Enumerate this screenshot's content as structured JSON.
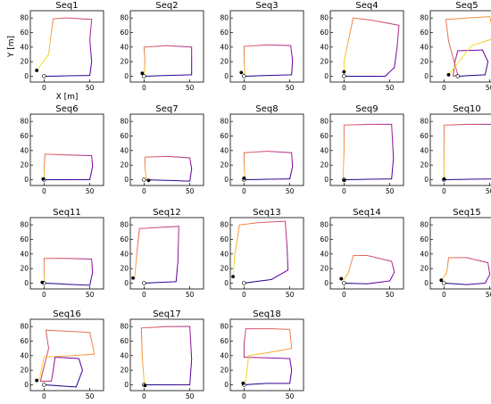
{
  "chart_data": [
    {
      "type": "line",
      "title": "Seq1",
      "xlabel": "X [m]",
      "ylabel": "Y [m]",
      "xlim": [
        -15,
        65
      ],
      "ylim": [
        -8,
        90
      ],
      "xticks": [
        0,
        50
      ],
      "yticks": [
        0,
        20,
        40,
        60,
        80
      ],
      "path": [
        [
          0,
          0
        ],
        [
          50,
          1
        ],
        [
          52,
          20
        ],
        [
          50,
          50
        ],
        [
          52,
          78
        ],
        [
          25,
          80
        ],
        [
          10,
          79
        ],
        [
          8,
          60
        ],
        [
          5,
          30
        ],
        [
          -8,
          8
        ]
      ],
      "start": [
        0,
        0
      ],
      "end": [
        -8,
        8
      ]
    },
    {
      "type": "line",
      "title": "Seq2",
      "xlabel": "",
      "ylabel": "",
      "xlim": [
        -15,
        65
      ],
      "ylim": [
        -8,
        90
      ],
      "xticks": [
        0,
        50
      ],
      "yticks": [
        0,
        20,
        40,
        60,
        80
      ],
      "path": [
        [
          0,
          0
        ],
        [
          52,
          2
        ],
        [
          52,
          20
        ],
        [
          52,
          40
        ],
        [
          25,
          42
        ],
        [
          0,
          40
        ],
        [
          1,
          20
        ],
        [
          0,
          3
        ],
        [
          -2,
          4
        ]
      ],
      "start": [
        0,
        0
      ],
      "end": [
        -2,
        4
      ]
    },
    {
      "type": "line",
      "title": "Seq3",
      "xlabel": "",
      "ylabel": "",
      "xlim": [
        -15,
        65
      ],
      "ylim": [
        -8,
        90
      ],
      "xticks": [
        0,
        50
      ],
      "yticks": [
        0,
        20,
        40,
        60,
        80
      ],
      "path": [
        [
          0,
          0
        ],
        [
          52,
          2
        ],
        [
          53,
          22
        ],
        [
          51,
          42
        ],
        [
          25,
          43
        ],
        [
          0,
          41
        ],
        [
          0,
          20
        ],
        [
          1,
          3
        ],
        [
          -3,
          5
        ]
      ],
      "start": [
        0,
        0
      ],
      "end": [
        -3,
        5
      ]
    },
    {
      "type": "line",
      "title": "Seq4",
      "xlabel": "",
      "ylabel": "",
      "xlim": [
        -15,
        65
      ],
      "ylim": [
        -8,
        90
      ],
      "xticks": [
        0,
        50
      ],
      "yticks": [
        0,
        20,
        40,
        60,
        80
      ],
      "path": [
        [
          0,
          0
        ],
        [
          45,
          0
        ],
        [
          55,
          12
        ],
        [
          58,
          40
        ],
        [
          60,
          70
        ],
        [
          30,
          77
        ],
        [
          10,
          80
        ],
        [
          5,
          50
        ],
        [
          0,
          20
        ],
        [
          0,
          6
        ]
      ],
      "start": [
        0,
        0
      ],
      "end": [
        0,
        6
      ]
    },
    {
      "type": "line",
      "title": "Seq5",
      "xlabel": "",
      "ylabel": "",
      "xlim": [
        -15,
        65
      ],
      "ylim": [
        -8,
        90
      ],
      "xticks": [
        0,
        50
      ],
      "yticks": [
        0,
        20,
        40,
        60,
        80
      ],
      "path": [
        [
          15,
          0
        ],
        [
          45,
          2
        ],
        [
          48,
          20
        ],
        [
          42,
          36
        ],
        [
          15,
          35
        ],
        [
          12,
          20
        ],
        [
          10,
          0
        ],
        [
          15,
          2
        ],
        [
          5,
          48
        ],
        [
          2,
          78
        ],
        [
          50,
          82
        ],
        [
          55,
          52
        ],
        [
          30,
          42
        ],
        [
          5,
          2
        ]
      ],
      "start": [
        15,
        0
      ],
      "end": [
        5,
        2
      ]
    },
    {
      "type": "line",
      "title": "Seq6",
      "xlabel": "",
      "ylabel": "",
      "xlim": [
        -15,
        65
      ],
      "ylim": [
        -8,
        90
      ],
      "xticks": [
        0,
        50
      ],
      "yticks": [
        0,
        20,
        40,
        60,
        80
      ],
      "path": [
        [
          0,
          0
        ],
        [
          50,
          0
        ],
        [
          53,
          18
        ],
        [
          52,
          33
        ],
        [
          25,
          34
        ],
        [
          1,
          35
        ],
        [
          0,
          15
        ],
        [
          0,
          4
        ],
        [
          -1,
          1
        ]
      ],
      "start": [
        0,
        0
      ],
      "end": [
        -1,
        1
      ]
    },
    {
      "type": "line",
      "title": "Seq7",
      "xlabel": "",
      "ylabel": "",
      "xlim": [
        -15,
        65
      ],
      "ylim": [
        -8,
        90
      ],
      "xticks": [
        0,
        50
      ],
      "yticks": [
        0,
        20,
        40,
        60,
        80
      ],
      "path": [
        [
          0,
          0
        ],
        [
          50,
          -2
        ],
        [
          52,
          15
        ],
        [
          50,
          30
        ],
        [
          25,
          32
        ],
        [
          1,
          31
        ],
        [
          1,
          15
        ],
        [
          3,
          0
        ],
        [
          5,
          -1
        ]
      ],
      "start": [
        0,
        0
      ],
      "end": [
        5,
        -1
      ]
    },
    {
      "type": "line",
      "title": "Seq8",
      "xlabel": "",
      "ylabel": "",
      "xlim": [
        -15,
        65
      ],
      "ylim": [
        -8,
        90
      ],
      "xticks": [
        0,
        50
      ],
      "yticks": [
        0,
        20,
        40,
        60,
        80
      ],
      "path": [
        [
          0,
          0
        ],
        [
          50,
          1
        ],
        [
          53,
          18
        ],
        [
          52,
          37
        ],
        [
          25,
          39
        ],
        [
          0,
          37
        ],
        [
          0,
          20
        ],
        [
          1,
          3
        ],
        [
          0,
          2
        ]
      ],
      "start": [
        0,
        0
      ],
      "end": [
        0,
        2
      ]
    },
    {
      "type": "line",
      "title": "Seq9",
      "xlabel": "",
      "ylabel": "",
      "xlim": [
        -15,
        65
      ],
      "ylim": [
        -8,
        90
      ],
      "xticks": [
        0,
        50
      ],
      "yticks": [
        0,
        20,
        40,
        60,
        80
      ],
      "path": [
        [
          0,
          0
        ],
        [
          52,
          1
        ],
        [
          54,
          30
        ],
        [
          52,
          76
        ],
        [
          25,
          76
        ],
        [
          0,
          75
        ],
        [
          0,
          40
        ],
        [
          -1,
          5
        ],
        [
          0,
          -1
        ]
      ],
      "start": [
        0,
        0
      ],
      "end": [
        0,
        -1
      ]
    },
    {
      "type": "line",
      "title": "Seq10",
      "xlabel": "",
      "ylabel": "",
      "xlim": [
        -15,
        65
      ],
      "ylim": [
        -8,
        90
      ],
      "xticks": [
        0,
        50
      ],
      "yticks": [
        0,
        20,
        40,
        60,
        80
      ],
      "path": [
        [
          0,
          0
        ],
        [
          53,
          1
        ],
        [
          55,
          30
        ],
        [
          53,
          76
        ],
        [
          25,
          76
        ],
        [
          0,
          75
        ],
        [
          0,
          40
        ],
        [
          0,
          5
        ],
        [
          0,
          1
        ]
      ],
      "start": [
        0,
        0
      ],
      "end": [
        0,
        1
      ]
    },
    {
      "type": "line",
      "title": "Seq11",
      "xlabel": "",
      "ylabel": "",
      "xlim": [
        -15,
        65
      ],
      "ylim": [
        -8,
        90
      ],
      "xticks": [
        0,
        50
      ],
      "yticks": [
        0,
        20,
        40,
        60,
        80
      ],
      "path": [
        [
          0,
          0
        ],
        [
          50,
          -3
        ],
        [
          53,
          15
        ],
        [
          52,
          33
        ],
        [
          25,
          34
        ],
        [
          0,
          34
        ],
        [
          0,
          15
        ],
        [
          0,
          2
        ],
        [
          -2,
          1
        ]
      ],
      "start": [
        0,
        0
      ],
      "end": [
        -2,
        1
      ]
    },
    {
      "type": "line",
      "title": "Seq12",
      "xlabel": "",
      "ylabel": "",
      "xlim": [
        -15,
        65
      ],
      "ylim": [
        -8,
        90
      ],
      "xticks": [
        0,
        50
      ],
      "yticks": [
        0,
        20,
        40,
        60,
        80
      ],
      "path": [
        [
          0,
          0
        ],
        [
          35,
          2
        ],
        [
          37,
          30
        ],
        [
          38,
          78
        ],
        [
          -5,
          75
        ],
        [
          -8,
          40
        ],
        [
          -10,
          10
        ],
        [
          -12,
          7
        ]
      ],
      "start": [
        0,
        0
      ],
      "end": [
        -12,
        7
      ]
    },
    {
      "type": "line",
      "title": "Seq13",
      "xlabel": "",
      "ylabel": "",
      "xlim": [
        -15,
        65
      ],
      "ylim": [
        -8,
        90
      ],
      "xticks": [
        0,
        50
      ],
      "yticks": [
        0,
        20,
        40,
        60,
        80
      ],
      "path": [
        [
          0,
          0
        ],
        [
          30,
          5
        ],
        [
          48,
          18
        ],
        [
          47,
          50
        ],
        [
          45,
          85
        ],
        [
          15,
          83
        ],
        [
          -5,
          80
        ],
        [
          -10,
          40
        ],
        [
          -12,
          9
        ]
      ],
      "start": [
        0,
        0
      ],
      "end": [
        -12,
        9
      ]
    },
    {
      "type": "line",
      "title": "Seq14",
      "xlabel": "",
      "ylabel": "",
      "xlim": [
        -15,
        65
      ],
      "ylim": [
        -8,
        90
      ],
      "xticks": [
        0,
        50
      ],
      "yticks": [
        0,
        20,
        40,
        60,
        80
      ],
      "path": [
        [
          0,
          0
        ],
        [
          25,
          -1
        ],
        [
          50,
          3
        ],
        [
          55,
          15
        ],
        [
          52,
          30
        ],
        [
          25,
          38
        ],
        [
          10,
          38
        ],
        [
          5,
          15
        ],
        [
          0,
          5
        ],
        [
          -3,
          6
        ]
      ],
      "start": [
        0,
        0
      ],
      "end": [
        -3,
        6
      ]
    },
    {
      "type": "line",
      "title": "Seq15",
      "xlabel": "",
      "ylabel": "",
      "xlim": [
        -15,
        65
      ],
      "ylim": [
        -8,
        90
      ],
      "xticks": [
        0,
        50
      ],
      "yticks": [
        0,
        20,
        40,
        60,
        80
      ],
      "path": [
        [
          0,
          0
        ],
        [
          25,
          -2
        ],
        [
          45,
          0
        ],
        [
          50,
          12
        ],
        [
          48,
          28
        ],
        [
          25,
          35
        ],
        [
          5,
          35
        ],
        [
          3,
          15
        ],
        [
          -2,
          5
        ],
        [
          -3,
          4
        ]
      ],
      "start": [
        0,
        0
      ],
      "end": [
        -3,
        4
      ]
    },
    {
      "type": "line",
      "title": "Seq16",
      "xlabel": "",
      "ylabel": "",
      "xlim": [
        -15,
        65
      ],
      "ylim": [
        -8,
        90
      ],
      "xticks": [
        0,
        50
      ],
      "yticks": [
        0,
        20,
        40,
        60,
        80
      ],
      "path": [
        [
          0,
          0
        ],
        [
          35,
          -3
        ],
        [
          42,
          20
        ],
        [
          38,
          36
        ],
        [
          12,
          38
        ],
        [
          10,
          20
        ],
        [
          8,
          5
        ],
        [
          -4,
          5
        ],
        [
          5,
          50
        ],
        [
          2,
          75
        ],
        [
          50,
          72
        ],
        [
          55,
          42
        ],
        [
          30,
          40
        ],
        [
          0,
          38
        ],
        [
          -5,
          8
        ],
        [
          -8,
          6
        ]
      ],
      "start": [
        0,
        0
      ],
      "end": [
        -8,
        6
      ]
    },
    {
      "type": "line",
      "title": "Seq17",
      "xlabel": "",
      "ylabel": "",
      "xlim": [
        -15,
        65
      ],
      "ylim": [
        -8,
        90
      ],
      "xticks": [
        0,
        50
      ],
      "yticks": [
        0,
        20,
        40,
        60,
        80
      ],
      "path": [
        [
          0,
          0
        ],
        [
          50,
          0
        ],
        [
          52,
          35
        ],
        [
          50,
          80
        ],
        [
          25,
          80
        ],
        [
          -3,
          78
        ],
        [
          -2,
          40
        ],
        [
          0,
          5
        ],
        [
          1,
          -1
        ]
      ],
      "start": [
        0,
        0
      ],
      "end": [
        1,
        -1
      ]
    },
    {
      "type": "line",
      "title": "Seq18",
      "xlabel": "",
      "ylabel": "",
      "xlim": [
        -15,
        65
      ],
      "ylim": [
        -8,
        90
      ],
      "xticks": [
        0,
        50
      ],
      "yticks": [
        0,
        20,
        40,
        60,
        80
      ],
      "path": [
        [
          0,
          0
        ],
        [
          25,
          2
        ],
        [
          50,
          2
        ],
        [
          52,
          20
        ],
        [
          50,
          36
        ],
        [
          25,
          37
        ],
        [
          0,
          38
        ],
        [
          0,
          56
        ],
        [
          2,
          77
        ],
        [
          30,
          77
        ],
        [
          50,
          76
        ],
        [
          52,
          50
        ],
        [
          30,
          45
        ],
        [
          5,
          40
        ],
        [
          2,
          5
        ],
        [
          -1,
          2
        ]
      ],
      "start": [
        0,
        0
      ],
      "end": [
        -1,
        2
      ]
    }
  ]
}
